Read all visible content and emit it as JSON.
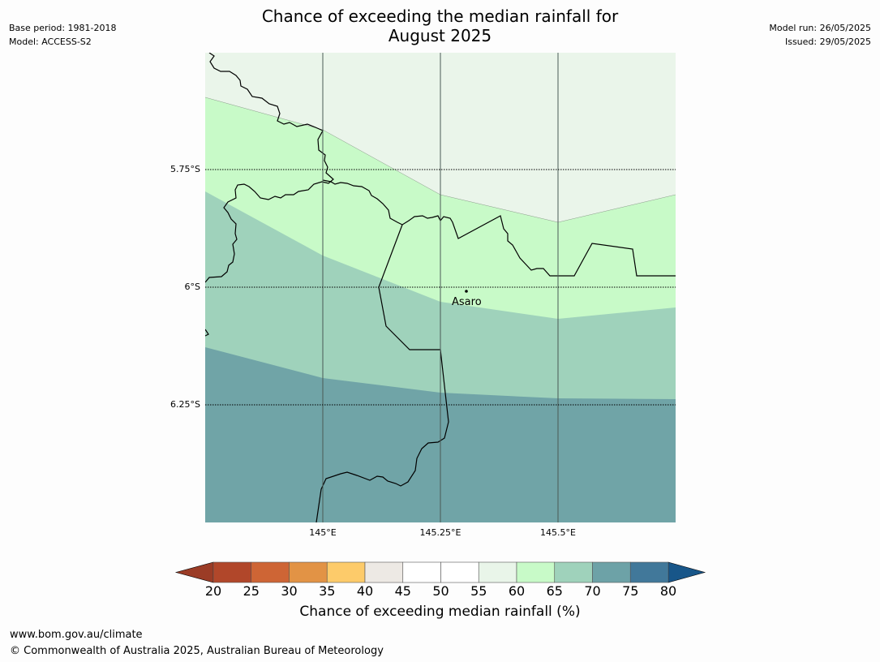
{
  "title_line1": "Chance of exceeding the median rainfall for",
  "title_line2": "August 2025",
  "meta_left": {
    "base_period": "Base period: 1981-2018",
    "model": "Model: ACCESS-S2"
  },
  "meta_right": {
    "model_run": "Model run: 26/05/2025",
    "issued": "Issued: 29/05/2025"
  },
  "map": {
    "lat_labels": [
      "5.75°S",
      "6°S",
      "6.25°S"
    ],
    "lon_labels": [
      "145°E",
      "145.25°E",
      "145.5°E"
    ],
    "place_label": "Asaro",
    "zone_colors": {
      "55-60": "#eaf5ea",
      "60-65": "#c8fac8",
      "65-70": "#9fd2bb",
      "70-75": "#70a4a7"
    }
  },
  "colorbar": {
    "ticks": [
      "20",
      "25",
      "30",
      "35",
      "40",
      "45",
      "50",
      "55",
      "60",
      "65",
      "70",
      "75",
      "80"
    ],
    "colors": [
      "#b1472a",
      "#ce6535",
      "#e29345",
      "#fdcb6a",
      "#ede9e4",
      "#ffffff",
      "#ffffff",
      "#e9f5e9",
      "#c8fac8",
      "#9fd2bb",
      "#6da2a7",
      "#41789a"
    ],
    "under_color": "#9b3c26",
    "over_color": "#185689",
    "title": "Chance of exceeding median rainfall (%)"
  },
  "footer": {
    "url": "www.bom.gov.au/climate",
    "copyright": "© Commonwealth of Australia 2025, Australian Bureau of Meteorology"
  }
}
